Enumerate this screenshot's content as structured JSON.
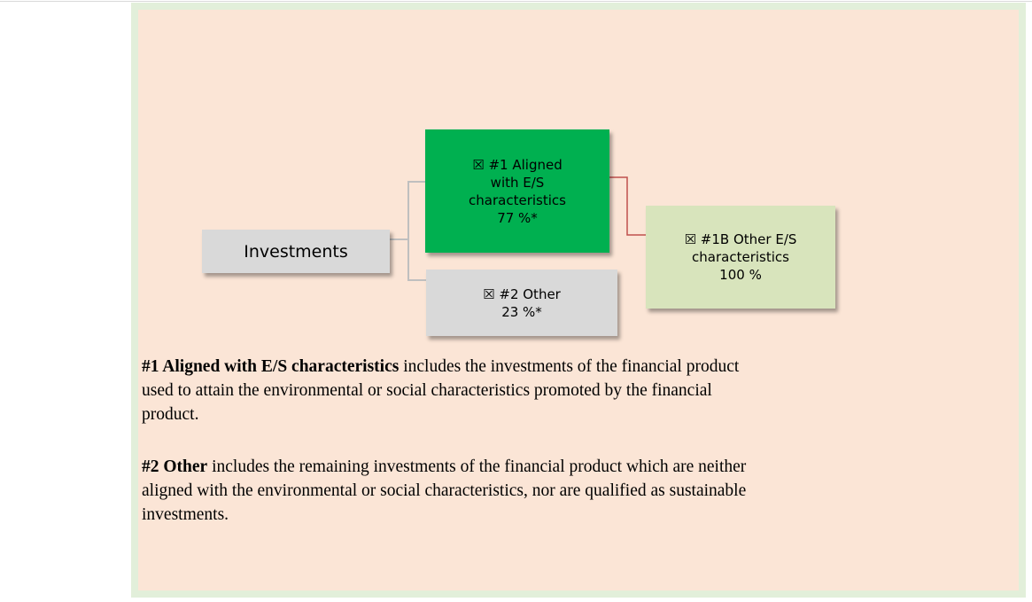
{
  "nodes": [
    {
      "lines": [
        "Investments"
      ]
    },
    {
      "lines": [
        "☒ #1 Aligned",
        "with E/S",
        "characteristics",
        "77 %*"
      ]
    },
    {
      "lines": [
        "☒ #2 Other",
        "23 %*"
      ]
    },
    {
      "lines": [
        "☒ #1B Other E/S",
        "characteristics",
        "100 %"
      ]
    }
  ],
  "paragraphs": [
    {
      "bold": "#1 Aligned with E/S characteristics",
      "lines": [
        " includes the investments of the financial product",
        "used to attain the environmental or social characteristics promoted by the financial",
        "product."
      ]
    },
    {
      "bold": "#2 Other",
      "lines": [
        " includes the remaining investments of the financial product which are neither",
        "aligned with the environmental or social characteristics, nor are qualified as sustainable",
        "investments."
      ]
    }
  ]
}
